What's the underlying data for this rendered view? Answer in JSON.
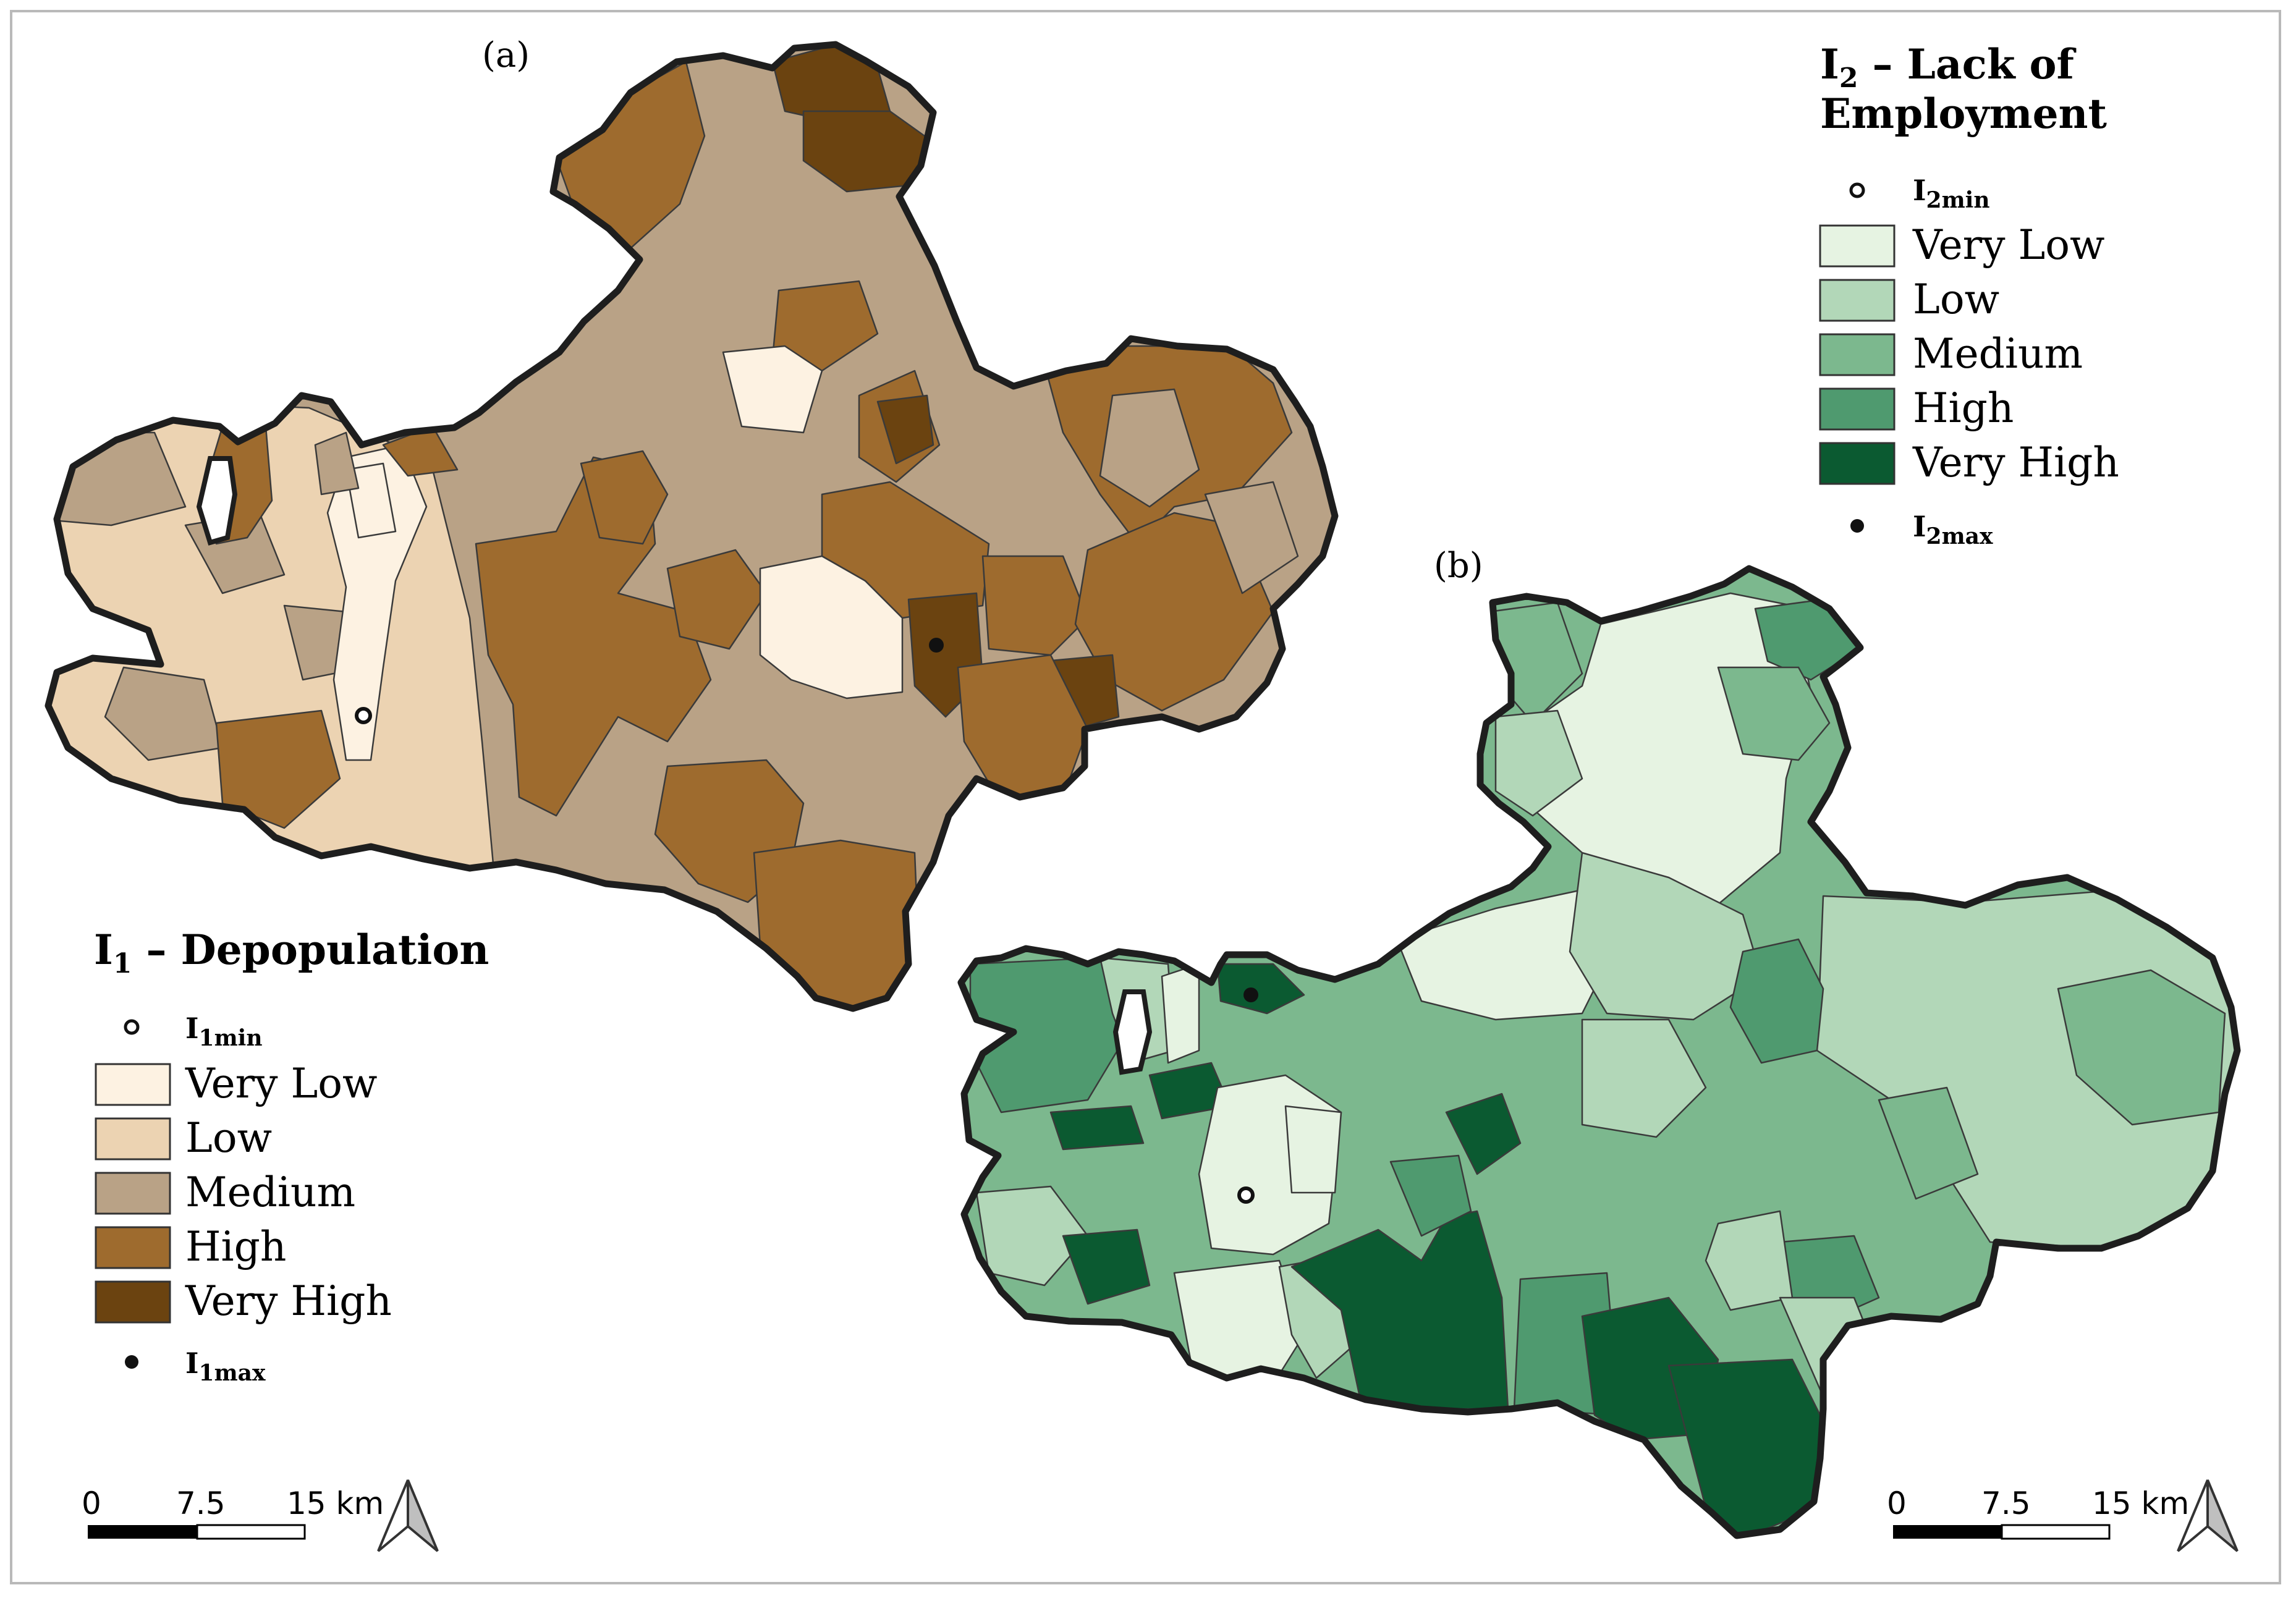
{
  "map_a": {
    "panel_label": "(a)",
    "legend": {
      "title_prefix": "I",
      "title_sub": "1",
      "title_rest": " – Depopulation",
      "min_label": "I",
      "min_sub": "1min",
      "max_label": "I",
      "max_sub": "1max",
      "classes": [
        {
          "label": "Very Low",
          "color": "#fdf2e2"
        },
        {
          "label": "Low",
          "color": "#ecd3b2"
        },
        {
          "label": "Medium",
          "color": "#b9a286"
        },
        {
          "label": "High",
          "color": "#9e6b2e"
        },
        {
          "label": "Very High",
          "color": "#6b4310"
        }
      ]
    },
    "scale": {
      "ticks": [
        "0",
        "7.5",
        "15 km"
      ]
    }
  },
  "map_b": {
    "panel_label": "(b)",
    "legend": {
      "title_prefix": "I",
      "title_sub": "2",
      "title_rest": " – Lack of",
      "title_line2": "Employment",
      "min_label": "I",
      "min_sub": "2min",
      "max_label": "I",
      "max_sub": "2max",
      "classes": [
        {
          "label": "Very Low",
          "color": "#e6f3e2"
        },
        {
          "label": "Low",
          "color": "#b2d7b8"
        },
        {
          "label": "Medium",
          "color": "#7cb88e"
        },
        {
          "label": "High",
          "color": "#4f9a6f"
        },
        {
          "label": "Very High",
          "color": "#0b5a31"
        }
      ]
    },
    "scale": {
      "ticks": [
        "0",
        "7.5",
        "15 km"
      ]
    }
  },
  "icons": {
    "north_arrow": "north-arrow-icon",
    "min_marker": "hollow-circle-icon",
    "max_marker": "filled-circle-icon"
  }
}
